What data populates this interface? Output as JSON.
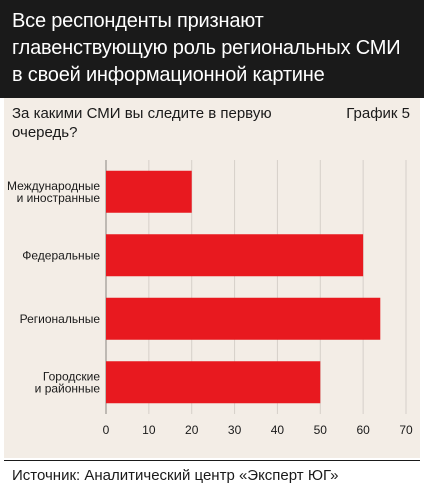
{
  "header": {
    "title": "Все респонденты признают главенствующую роль региональных СМИ в своей информационной картине"
  },
  "question": "За какими СМИ вы следите в первую очередь?",
  "chart_label": "График 5",
  "source": "Источник: Аналитический центр «Эксперт ЮГ»",
  "colors": {
    "bar": "#e8191f",
    "header_bg": "#1a1a1a",
    "panel_bg": "#f3ede6"
  },
  "chart_data": {
    "type": "bar",
    "orientation": "horizontal",
    "categories": [
      [
        "Международные",
        "и иностранные"
      ],
      [
        "Федеральные"
      ],
      [
        "Региональные"
      ],
      [
        "Городские",
        "и районные"
      ]
    ],
    "values": [
      20,
      60,
      64,
      50
    ],
    "xlim": [
      0,
      70
    ],
    "xticks": [
      0,
      10,
      20,
      30,
      40,
      50,
      60,
      70
    ],
    "grid": true
  }
}
